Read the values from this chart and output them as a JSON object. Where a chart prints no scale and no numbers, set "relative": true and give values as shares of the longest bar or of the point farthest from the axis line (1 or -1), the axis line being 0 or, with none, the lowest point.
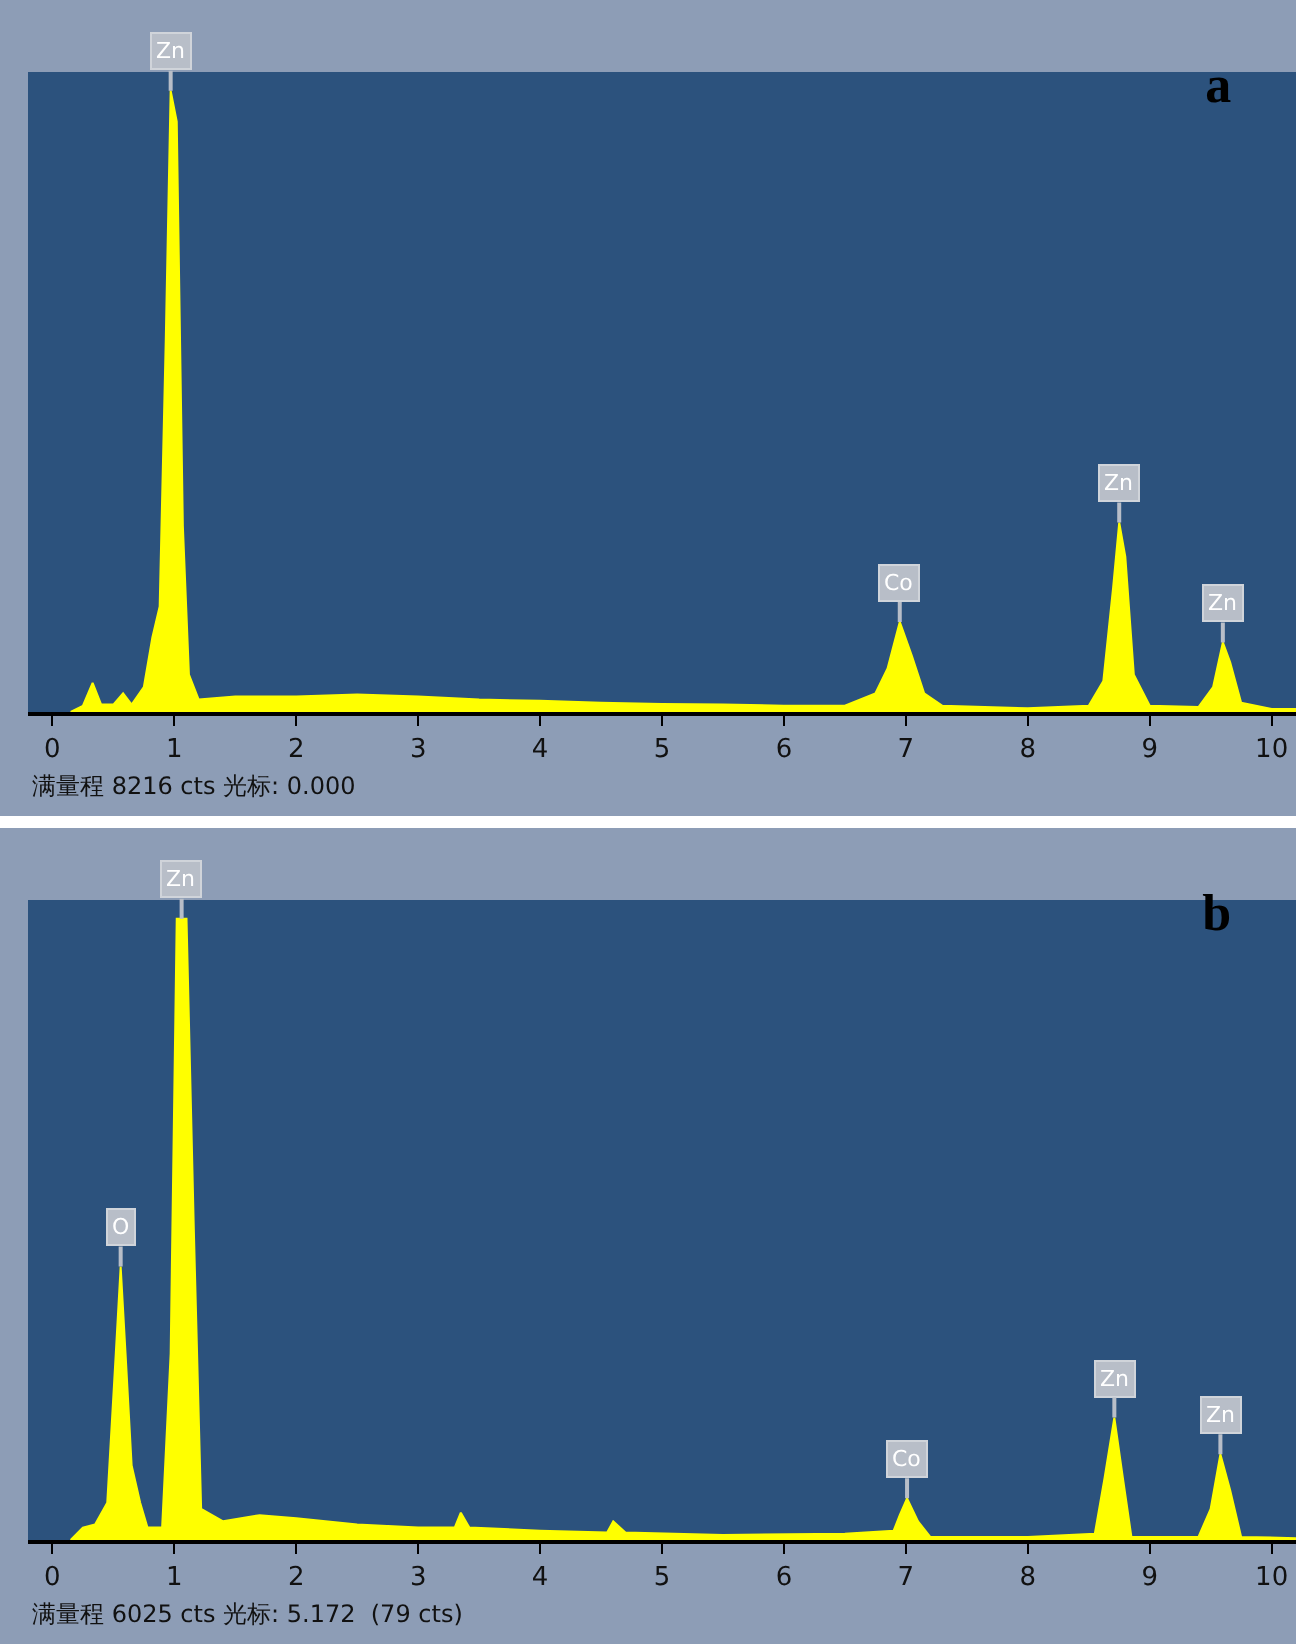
{
  "chart_data": [
    {
      "type": "area",
      "title": "a",
      "relative": true,
      "color": "#ffff00",
      "xlim": [
        -0.2,
        10.2
      ],
      "xticks": [
        0,
        1,
        2,
        3,
        4,
        5,
        6,
        7,
        8,
        9,
        10
      ],
      "x": [
        0.15,
        0.25,
        0.33,
        0.4,
        0.5,
        0.58,
        0.65,
        0.75,
        0.82,
        0.88,
        0.93,
        0.97,
        1.02,
        1.07,
        1.12,
        1.2,
        1.5,
        2.0,
        2.5,
        3.0,
        3.5,
        4.0,
        4.5,
        5.0,
        5.5,
        6.0,
        6.5,
        6.75,
        6.85,
        6.95,
        7.05,
        7.15,
        7.3,
        8.0,
        8.5,
        8.62,
        8.7,
        8.75,
        8.8,
        8.87,
        9.0,
        9.4,
        9.52,
        9.6,
        9.66,
        9.75,
        10.0,
        10.2
      ],
      "values": [
        0,
        0.01,
        0.047,
        0.012,
        0.012,
        0.03,
        0.012,
        0.04,
        0.12,
        0.17,
        0.6,
        1.0,
        0.95,
        0.3,
        0.06,
        0.02,
        0.025,
        0.025,
        0.028,
        0.025,
        0.02,
        0.018,
        0.015,
        0.013,
        0.012,
        0.01,
        0.01,
        0.03,
        0.07,
        0.145,
        0.09,
        0.03,
        0.01,
        0.006,
        0.01,
        0.05,
        0.2,
        0.305,
        0.25,
        0.06,
        0.01,
        0.008,
        0.04,
        0.112,
        0.08,
        0.015,
        0.005,
        0.005
      ],
      "annotations": [
        {
          "text": "Zn",
          "x": 0.97,
          "y": 1.0
        },
        {
          "text": "Co",
          "x": 6.95,
          "y": 0.145
        },
        {
          "text": "Zn",
          "x": 8.75,
          "y": 0.305
        },
        {
          "text": "Zn",
          "x": 9.6,
          "y": 0.112
        },
        "满量程 8216 cts 光标: 0.000"
      ]
    },
    {
      "type": "area",
      "title": "b",
      "relative": true,
      "color": "#ffff00",
      "xlim": [
        -0.2,
        10.2
      ],
      "xticks": [
        0,
        1,
        2,
        3,
        4,
        5,
        6,
        7,
        8,
        9,
        10
      ],
      "x": [
        0.15,
        0.25,
        0.35,
        0.45,
        0.52,
        0.56,
        0.6,
        0.65,
        0.72,
        0.78,
        0.9,
        0.97,
        1.02,
        1.1,
        1.16,
        1.22,
        1.4,
        1.7,
        2.0,
        2.5,
        3.0,
        3.3,
        3.35,
        3.42,
        4.0,
        4.55,
        4.6,
        4.7,
        5.5,
        6.5,
        6.9,
        6.95,
        7.01,
        7.1,
        7.2,
        8.0,
        8.55,
        8.63,
        8.71,
        8.78,
        8.85,
        9.4,
        9.5,
        9.58,
        9.66,
        9.75,
        10.2
      ],
      "values": [
        0,
        0.02,
        0.025,
        0.06,
        0.3,
        0.44,
        0.3,
        0.12,
        0.06,
        0.02,
        0.02,
        0.3,
        1.0,
        1.0,
        0.5,
        0.05,
        0.03,
        0.04,
        0.035,
        0.025,
        0.02,
        0.02,
        0.044,
        0.02,
        0.015,
        0.012,
        0.03,
        0.012,
        0.008,
        0.01,
        0.015,
        0.04,
        0.067,
        0.03,
        0.005,
        0.005,
        0.01,
        0.1,
        0.197,
        0.1,
        0.005,
        0.005,
        0.05,
        0.138,
        0.08,
        0.005,
        0.003
      ],
      "annotations": [
        {
          "text": "O",
          "x": 0.56,
          "y": 0.44
        },
        {
          "text": "Zn",
          "x": 1.06,
          "y": 1.0
        },
        {
          "text": "Co",
          "x": 7.01,
          "y": 0.067
        },
        {
          "text": "Zn",
          "x": 8.71,
          "y": 0.197
        },
        {
          "text": "Zn",
          "x": 9.58,
          "y": 0.138
        },
        "满量程 6025 cts 光标: 5.172  (79 cts)"
      ]
    }
  ]
}
